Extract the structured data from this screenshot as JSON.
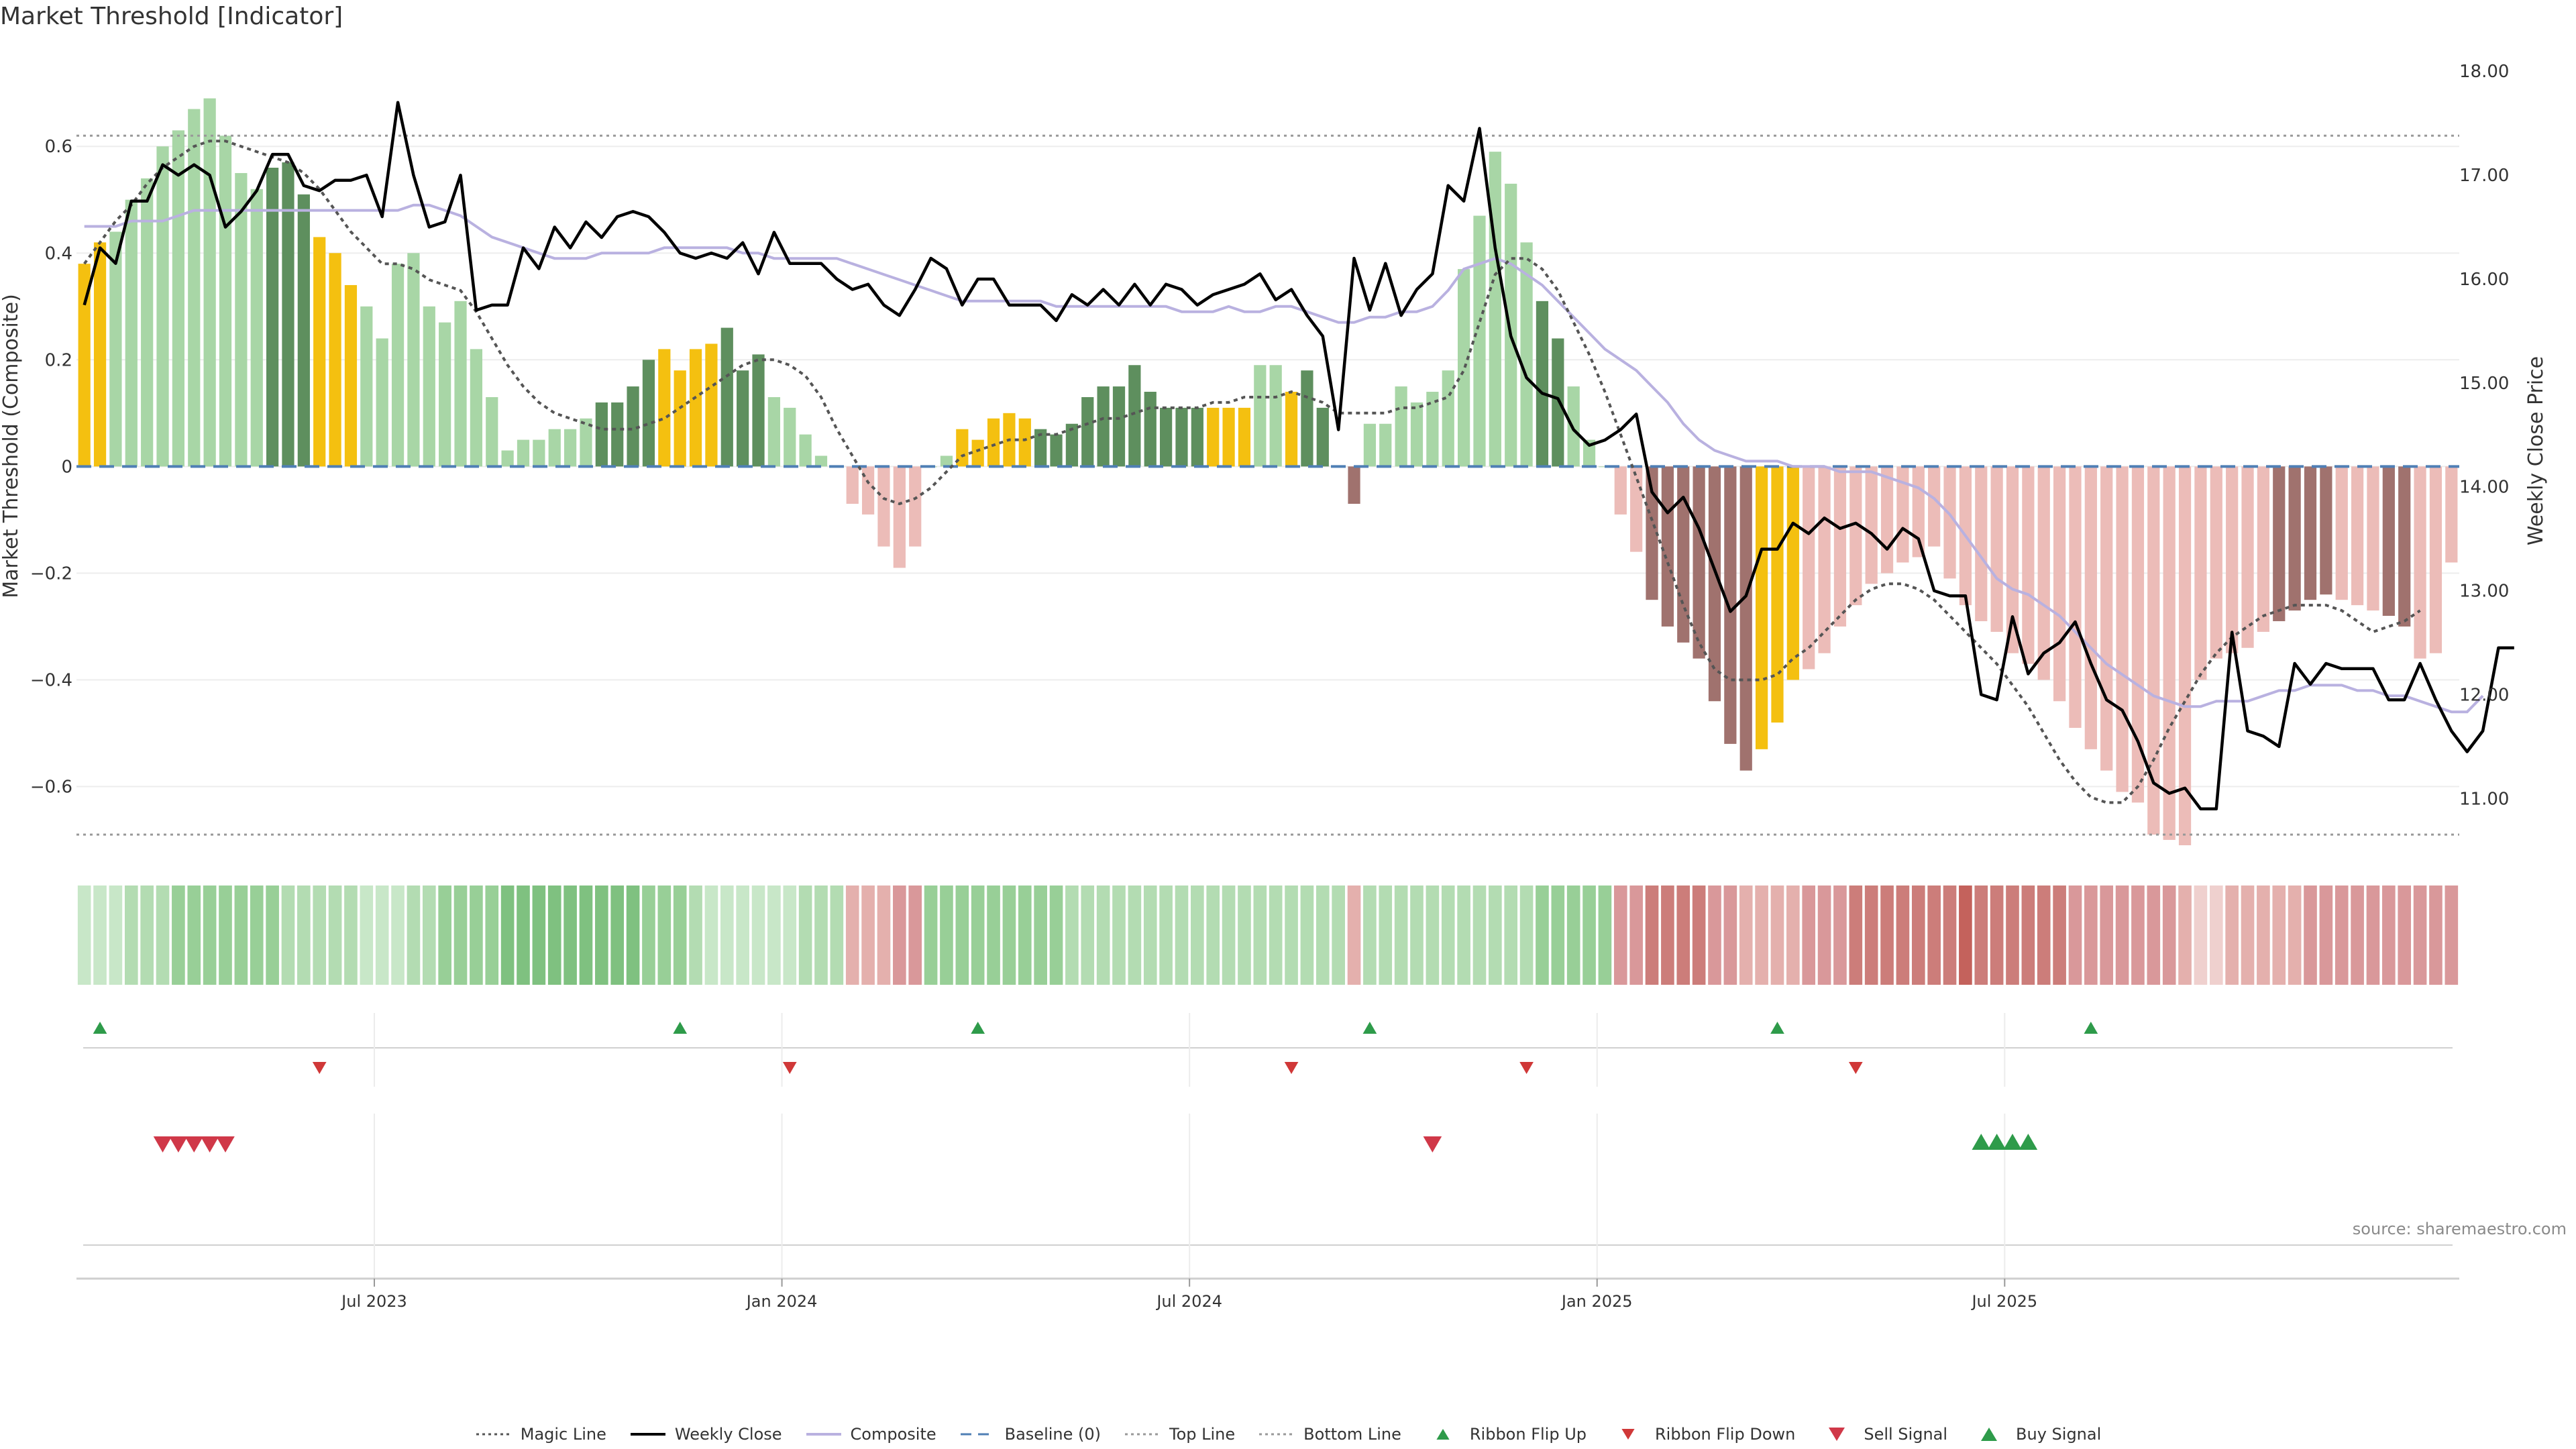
{
  "chart_data": {
    "title": "Market Threshold [Indicator]",
    "type": "bar",
    "y_left_label": "Market Threshold (Composite)",
    "y_right_label": "Weekly Close Price",
    "y_left_ticks": [
      "0.6",
      "0.4",
      "0.2",
      "0",
      "−0.2",
      "−0.4",
      "−0.6"
    ],
    "y_right_ticks": [
      "18.00",
      "17.00",
      "16.00",
      "15.00",
      "14.00",
      "13.00",
      "12.00",
      "11.00"
    ],
    "x_ticks": [
      "Jul 2023",
      "Jan 2024",
      "Jul 2024",
      "Jan 2025",
      "Jul 2025"
    ],
    "top_line": 0.62,
    "bottom_line": -0.69,
    "baseline": 0,
    "ylim_left": [
      -0.71,
      0.77
    ],
    "ylim_right": [
      10.55,
      18.15
    ],
    "composite_bars": [
      0.38,
      0.42,
      0.44,
      0.5,
      0.54,
      0.6,
      0.63,
      0.67,
      0.69,
      0.62,
      0.55,
      0.52,
      0.56,
      0.57,
      0.51,
      0.43,
      0.4,
      0.34,
      0.3,
      0.24,
      0.38,
      0.4,
      0.3,
      0.27,
      0.31,
      0.22,
      0.13,
      0.03,
      0.05,
      0.05,
      0.07,
      0.07,
      0.09,
      0.12,
      0.12,
      0.15,
      0.2,
      0.22,
      0.18,
      0.22,
      0.23,
      0.26,
      0.18,
      0.21,
      0.13,
      0.11,
      0.06,
      0.02,
      0,
      -0.07,
      -0.09,
      -0.15,
      -0.19,
      -0.15,
      0,
      0.02,
      0.07,
      0.05,
      0.09,
      0.1,
      0.09,
      0.07,
      0.06,
      0.08,
      0.13,
      0.15,
      0.15,
      0.19,
      0.14,
      0.11,
      0.11,
      0.11,
      0.11,
      0.11,
      0.11,
      0.19,
      0.19,
      0.14,
      0.18,
      0.11,
      0,
      -0.07,
      0.08,
      0.08,
      0.15,
      0.12,
      0.14,
      0.18,
      0.37,
      0.47,
      0.59,
      0.53,
      0.42,
      0.31,
      0.24,
      0.15,
      0.05,
      0,
      -0.09,
      -0.16,
      -0.25,
      -0.3,
      -0.33,
      -0.36,
      -0.44,
      -0.52,
      -0.57,
      -0.53,
      -0.48,
      -0.4,
      -0.38,
      -0.35,
      -0.3,
      -0.26,
      -0.22,
      -0.2,
      -0.18,
      -0.17,
      -0.15,
      -0.21,
      -0.26,
      -0.29,
      -0.31,
      -0.35,
      -0.37,
      -0.4,
      -0.44,
      -0.49,
      -0.53,
      -0.57,
      -0.61,
      -0.63,
      -0.69,
      -0.7,
      -0.71,
      -0.4,
      -0.36,
      -0.35,
      -0.34,
      -0.31,
      -0.29,
      -0.27,
      -0.25,
      -0.24,
      -0.25,
      -0.26,
      -0.27,
      -0.28,
      -0.3,
      -0.36,
      -0.35,
      -0.18
    ],
    "bar_state": "6633330000001116660000000000000001111666611100000003333366666111111111116667761111000000000001133335111111166600000044477800000000000000000011117551100000000000000000001111005553333000000000000000000000000000000000000000003333000000000000000000000000000000004466633333333330000000000000000000",
    "weekly_close": [
      15.75,
      16.3,
      16.15,
      16.75,
      16.75,
      17.1,
      17.0,
      17.1,
      17.0,
      16.5,
      16.65,
      16.85,
      17.2,
      17.2,
      16.9,
      16.85,
      16.95,
      16.95,
      17.0,
      16.6,
      17.7,
      17.0,
      16.5,
      16.55,
      17.0,
      15.7,
      15.75,
      15.75,
      16.3,
      16.1,
      16.5,
      16.3,
      16.55,
      16.4,
      16.6,
      16.65,
      16.6,
      16.45,
      16.25,
      16.2,
      16.25,
      16.2,
      16.35,
      16.05,
      16.45,
      16.15,
      16.15,
      16.15,
      16.0,
      15.9,
      15.95,
      15.75,
      15.65,
      15.9,
      16.2,
      16.1,
      15.75,
      16.0,
      16.0,
      15.75,
      15.75,
      15.75,
      15.6,
      15.85,
      15.75,
      15.9,
      15.75,
      15.95,
      15.75,
      15.95,
      15.9,
      15.75,
      15.85,
      15.9,
      15.95,
      16.05,
      15.8,
      15.9,
      15.65,
      15.45,
      14.55,
      16.2,
      15.7,
      16.15,
      15.65,
      15.9,
      16.05,
      16.9,
      16.75,
      17.45,
      16.3,
      15.45,
      15.05,
      14.9,
      14.85,
      14.55,
      14.4,
      14.45,
      14.55,
      14.7,
      13.95,
      13.75,
      13.9,
      13.6,
      13.2,
      12.8,
      12.95,
      13.4,
      13.4,
      13.65,
      13.55,
      13.7,
      13.6,
      13.65,
      13.55,
      13.4,
      13.6,
      13.5,
      13.0,
      12.95,
      12.95,
      12.0,
      11.95,
      12.75,
      12.2,
      12.4,
      12.5,
      12.7,
      12.3,
      11.95,
      11.85,
      11.55,
      11.15,
      11.05,
      11.1,
      10.9,
      10.9,
      12.6,
      11.65,
      11.6,
      11.5,
      12.3,
      12.1,
      12.3,
      12.25,
      12.25,
      12.25,
      11.95,
      11.95,
      12.3,
      11.95,
      11.65,
      11.45,
      11.65,
      12.45,
      12.45
    ],
    "magic_line": [
      0.38,
      0.42,
      0.46,
      0.49,
      0.53,
      0.56,
      0.58,
      0.6,
      0.61,
      0.61,
      0.6,
      0.59,
      0.58,
      0.57,
      0.55,
      0.52,
      0.48,
      0.44,
      0.41,
      0.38,
      0.38,
      0.37,
      0.35,
      0.34,
      0.33,
      0.29,
      0.24,
      0.19,
      0.15,
      0.12,
      0.1,
      0.09,
      0.08,
      0.07,
      0.07,
      0.07,
      0.08,
      0.09,
      0.11,
      0.13,
      0.15,
      0.17,
      0.19,
      0.2,
      0.2,
      0.19,
      0.17,
      0.13,
      0.07,
      0.02,
      -0.03,
      -0.06,
      -0.07,
      -0.06,
      -0.04,
      -0.01,
      0.02,
      0.03,
      0.04,
      0.05,
      0.05,
      0.06,
      0.06,
      0.07,
      0.08,
      0.09,
      0.09,
      0.1,
      0.11,
      0.11,
      0.11,
      0.11,
      0.12,
      0.12,
      0.13,
      0.13,
      0.13,
      0.14,
      0.13,
      0.12,
      0.1,
      0.1,
      0.1,
      0.1,
      0.11,
      0.11,
      0.12,
      0.13,
      0.18,
      0.27,
      0.36,
      0.39,
      0.39,
      0.37,
      0.33,
      0.27,
      0.21,
      0.14,
      0.06,
      -0.02,
      -0.1,
      -0.18,
      -0.26,
      -0.33,
      -0.38,
      -0.4,
      -0.4,
      -0.4,
      -0.39,
      -0.36,
      -0.34,
      -0.31,
      -0.28,
      -0.25,
      -0.23,
      -0.22,
      -0.22,
      -0.23,
      -0.25,
      -0.28,
      -0.31,
      -0.34,
      -0.37,
      -0.41,
      -0.45,
      -0.5,
      -0.55,
      -0.59,
      -0.62,
      -0.63,
      -0.63,
      -0.6,
      -0.55,
      -0.49,
      -0.44,
      -0.39,
      -0.35,
      -0.32,
      -0.3,
      -0.28,
      -0.27,
      -0.26,
      -0.26,
      -0.26,
      -0.27,
      -0.29,
      -0.31,
      -0.3,
      -0.29,
      -0.27
    ],
    "composite_line": [
      0.45,
      0.45,
      0.45,
      0.46,
      0.46,
      0.46,
      0.47,
      0.48,
      0.48,
      0.48,
      0.48,
      0.48,
      0.48,
      0.48,
      0.48,
      0.48,
      0.48,
      0.48,
      0.48,
      0.48,
      0.48,
      0.49,
      0.49,
      0.48,
      0.47,
      0.45,
      0.43,
      0.42,
      0.41,
      0.4,
      0.39,
      0.39,
      0.39,
      0.4,
      0.4,
      0.4,
      0.4,
      0.41,
      0.41,
      0.41,
      0.41,
      0.41,
      0.4,
      0.4,
      0.39,
      0.39,
      0.39,
      0.39,
      0.39,
      0.38,
      0.37,
      0.36,
      0.35,
      0.34,
      0.33,
      0.32,
      0.31,
      0.31,
      0.31,
      0.31,
      0.31,
      0.31,
      0.3,
      0.3,
      0.3,
      0.3,
      0.3,
      0.3,
      0.3,
      0.3,
      0.29,
      0.29,
      0.29,
      0.3,
      0.29,
      0.29,
      0.3,
      0.3,
      0.29,
      0.28,
      0.27,
      0.27,
      0.28,
      0.28,
      0.29,
      0.29,
      0.3,
      0.33,
      0.37,
      0.38,
      0.39,
      0.38,
      0.36,
      0.34,
      0.31,
      0.28,
      0.25,
      0.22,
      0.2,
      0.18,
      0.15,
      0.12,
      0.08,
      0.05,
      0.03,
      0.02,
      0.01,
      0.01,
      0.01,
      0.0,
      0.0,
      0.0,
      -0.01,
      -0.01,
      -0.01,
      -0.02,
      -0.03,
      -0.04,
      -0.06,
      -0.09,
      -0.13,
      -0.17,
      -0.21,
      -0.23,
      -0.24,
      -0.26,
      -0.28,
      -0.31,
      -0.34,
      -0.37,
      -0.39,
      -0.41,
      -0.43,
      -0.44,
      -0.45,
      -0.45,
      -0.44,
      -0.44,
      -0.44,
      -0.43,
      -0.42,
      -0.42,
      -0.41,
      -0.41,
      -0.41,
      -0.42,
      -0.42,
      -0.43,
      -0.43,
      -0.44,
      -0.45,
      -0.46,
      -0.46,
      -0.43
    ],
    "ribbon_levels": "000111222222211111000112222333333333222100000011111122222222222111111111111111111111111111111222222233332211112223333333433333322222221001111122222222222222222222222111111111111111111111111111111111111111111111111",
    "ribbon_signs": "01111111111111111111111111111111111111111111111111111111111111111111111111111111111111111111111111111111111111111111111111111111111111111111111111111111111111111111111111111111111111111111111111111",
    "ribbon_flip_up": [
      1,
      38,
      57,
      82,
      108,
      128
    ],
    "ribbon_flip_down": [
      15,
      45,
      77,
      92,
      113
    ],
    "sell_signal": [
      5,
      6,
      7,
      8,
      9,
      86
    ],
    "buy_signal": [
      121,
      122,
      123,
      124
    ],
    "legend": [
      {
        "name": "Magic Line",
        "kind": "dotted",
        "color": "#555555"
      },
      {
        "name": "Weekly Close",
        "kind": "solid",
        "color": "#000000"
      },
      {
        "name": "Composite",
        "kind": "solid",
        "color": "#b9b1e0"
      },
      {
        "name": "Baseline (0)",
        "kind": "dashed",
        "color": "#4f7fb5"
      },
      {
        "name": "Top Line",
        "kind": "dotted",
        "color": "#999999"
      },
      {
        "name": "Bottom Line",
        "kind": "dotted",
        "color": "#999999"
      },
      {
        "name": "Ribbon Flip Up",
        "kind": "tri-up",
        "color": "#2e9b4a"
      },
      {
        "name": "Ribbon Flip Down",
        "kind": "tri-down",
        "color": "#d03838"
      },
      {
        "name": "Sell Signal",
        "kind": "tri-down-big",
        "color": "#d03848"
      },
      {
        "name": "Buy Signal",
        "kind": "tri-up-big",
        "color": "#2e9b4a"
      }
    ],
    "source": "source: sharemaestro.com",
    "colors": {
      "bull_strong": "#5e8f5e",
      "bull_weak": "#a8d6a6",
      "bear_strong": "#a0726e",
      "bear_weak": "#ecbcb8",
      "threshold_hit": "#f4c010",
      "weekly_close": "#000000",
      "composite_line": "#b9b1e0",
      "magic_line": "#555555",
      "baseline": "#4f7fb5",
      "flip_up": "#2e9b4a",
      "flip_down": "#d03838"
    }
  }
}
